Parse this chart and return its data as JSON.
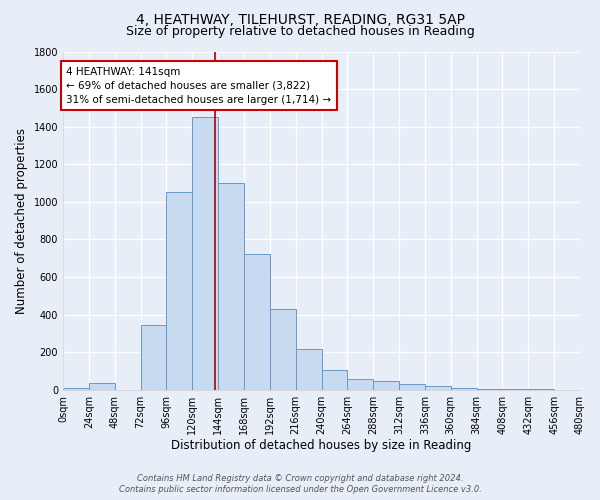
{
  "title": "4, HEATHWAY, TILEHURST, READING, RG31 5AP",
  "subtitle": "Size of property relative to detached houses in Reading",
  "xlabel": "Distribution of detached houses by size in Reading",
  "ylabel": "Number of detached properties",
  "footer_line1": "Contains HM Land Registry data © Crown copyright and database right 2024.",
  "footer_line2": "Contains public sector information licensed under the Open Government Licence v3.0.",
  "bar_edges": [
    0,
    24,
    48,
    72,
    96,
    120,
    144,
    168,
    192,
    216,
    240,
    264,
    288,
    312,
    336,
    360,
    384,
    408,
    432,
    456,
    480
  ],
  "bar_values": [
    10,
    35,
    0,
    345,
    1050,
    1450,
    1100,
    725,
    430,
    215,
    105,
    55,
    45,
    30,
    18,
    12,
    5,
    3,
    2,
    1
  ],
  "bar_color": "#c8daf0",
  "bar_edge_color": "#6699cc",
  "property_sqm": 141,
  "vline_color": "#aa0000",
  "annotation_text_line1": "4 HEATHWAY: 141sqm",
  "annotation_text_line2": "← 69% of detached houses are smaller (3,822)",
  "annotation_text_line3": "31% of semi-detached houses are larger (1,714) →",
  "annotation_box_edgecolor": "#cc0000",
  "annotation_box_facecolor": "#ffffff",
  "bg_color": "#e8eef8",
  "plot_bg_color": "#e8eef8",
  "grid_color": "#ffffff",
  "title_fontsize": 10,
  "subtitle_fontsize": 9,
  "tick_label_fontsize": 7,
  "axis_label_fontsize": 8.5,
  "annotation_fontsize": 7.5,
  "ylim": [
    0,
    1800
  ],
  "yticks": [
    0,
    200,
    400,
    600,
    800,
    1000,
    1200,
    1400,
    1600,
    1800
  ]
}
